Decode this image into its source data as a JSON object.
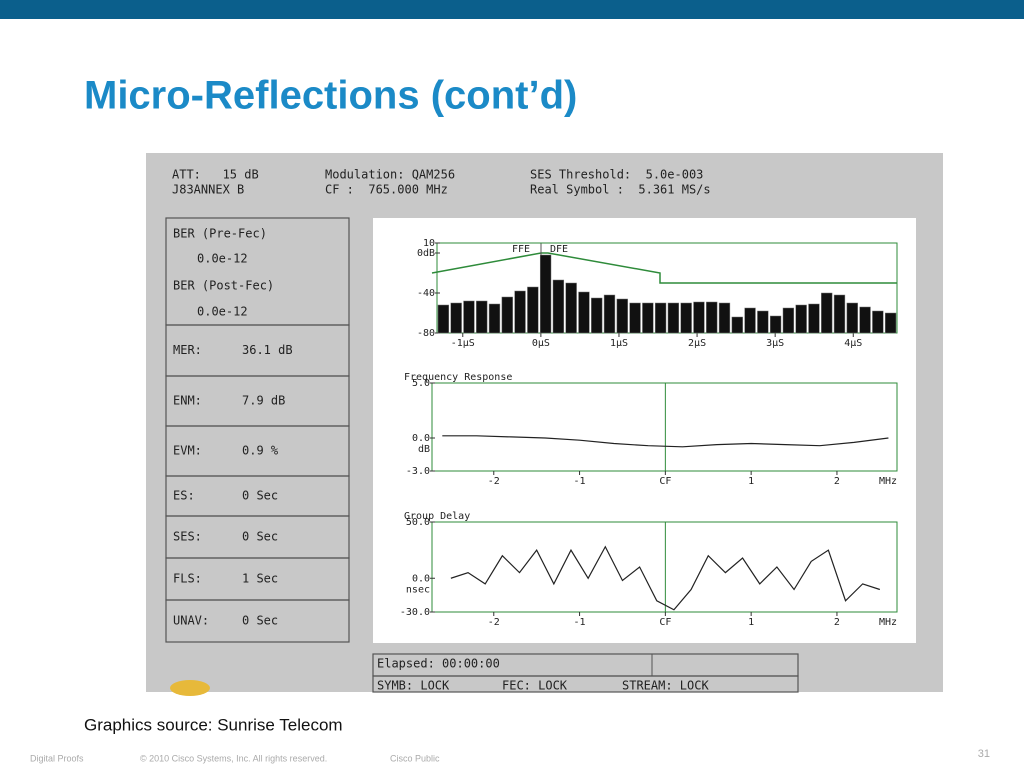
{
  "header": {
    "title": "Micro-Reflections (cont’d)"
  },
  "screen": {
    "info": [
      "ATT:   15 dB",
      "J83ANNEX B",
      "Modulation: QAM256",
      "CF :  765.000 MHz",
      "SES Threshold:  5.0e-003",
      "Real Symbol :  5.361 MS/s"
    ],
    "ber": [
      "BER (Pre-Fec)",
      "0.0e-12",
      "BER (Post-Fec)",
      "0.0e-12"
    ],
    "stats": [
      {
        "label": "MER:",
        "value": "36.1 dB"
      },
      {
        "label": "ENM:",
        "value": "7.9 dB"
      },
      {
        "label": "EVM:",
        "value": "0.9 %"
      },
      {
        "label": "ES:",
        "value": "0 Sec"
      },
      {
        "label": "SES:",
        "value": "0 Sec"
      },
      {
        "label": "FLS:",
        "value": "1 Sec"
      },
      {
        "label": "UNAV:",
        "value": "0 Sec"
      }
    ],
    "equalizer": {
      "legend": [
        "FFE",
        "DFE"
      ],
      "ylim": [
        -80,
        10
      ],
      "yticks": [
        10,
        {
          "value": 0,
          "label": "0dB"
        },
        -40,
        -80
      ],
      "xlim": [
        -1.33,
        4.56
      ],
      "xticks": [
        {
          "value": -1,
          "label": "-1µS"
        },
        {
          "value": 0,
          "label": "0µS"
        },
        {
          "value": 1,
          "label": "1µS"
        },
        {
          "value": 2,
          "label": "2µS"
        },
        {
          "value": 3,
          "label": "3µS"
        },
        {
          "value": 4,
          "label": "4µS"
        }
      ],
      "values": [
        -52,
        -50,
        -48,
        -48,
        -51,
        -44,
        -38,
        -34,
        -2,
        -27,
        -30,
        -39,
        -45,
        -42,
        -46,
        -50,
        -50,
        -50,
        -50,
        -50,
        -49,
        -49,
        -50,
        -64,
        -55,
        -58,
        -63,
        -55,
        -52,
        -51,
        -40,
        -42,
        -50,
        -54,
        -58,
        -60
      ]
    },
    "frequency_response": {
      "title": "Frequency Response",
      "y_unit": "dB",
      "x_unit": "MHz",
      "ylim": [
        -3,
        5
      ],
      "yticks": [
        {
          "value": 5,
          "label": "5.0"
        },
        {
          "value": 0,
          "label": "0.0"
        },
        {
          "value": -3,
          "label": "-3.0"
        }
      ],
      "xlim": [
        -2.72,
        2.7
      ],
      "xticks": [
        -2,
        -1,
        {
          "value": 0,
          "label": "CF"
        },
        1,
        2
      ],
      "x": [
        -2.6,
        -2.2,
        -1.8,
        -1.4,
        -1.0,
        -0.6,
        -0.2,
        0.2,
        0.6,
        1.0,
        1.4,
        1.8,
        2.2,
        2.6
      ],
      "values": [
        0.2,
        0.2,
        0.1,
        0.0,
        -0.2,
        -0.5,
        -0.7,
        -0.8,
        -0.6,
        -0.5,
        -0.6,
        -0.7,
        -0.4,
        0.0
      ]
    },
    "group_delay": {
      "title": "Group Delay",
      "y_unit": "nsec",
      "x_unit": "MHz",
      "ylim": [
        -30,
        50
      ],
      "yticks": [
        {
          "value": 50,
          "label": "50.0"
        },
        {
          "value": 0,
          "label": "0.0"
        },
        {
          "value": -30,
          "label": "-30.0"
        }
      ],
      "xlim": [
        -2.72,
        2.7
      ],
      "xticks": [
        -2,
        -1,
        {
          "value": 0,
          "label": "CF"
        },
        1,
        2
      ],
      "x": [
        -2.5,
        -2.3,
        -2.1,
        -1.9,
        -1.7,
        -1.5,
        -1.3,
        -1.1,
        -0.9,
        -0.7,
        -0.5,
        -0.3,
        -0.1,
        0.1,
        0.3,
        0.5,
        0.7,
        0.9,
        1.1,
        1.3,
        1.5,
        1.7,
        1.9,
        2.1,
        2.3,
        2.5
      ],
      "values": [
        0,
        5,
        -5,
        20,
        5,
        25,
        -5,
        25,
        0,
        28,
        -2,
        10,
        -20,
        -28,
        -10,
        20,
        5,
        18,
        -5,
        10,
        -10,
        15,
        25,
        -20,
        -5,
        -10
      ]
    },
    "status": [
      "Elapsed: 00:00:00",
      "SYMB: LOCK",
      "FEC: LOCK",
      "STREAM: LOCK"
    ]
  },
  "caption": "Graphics source: Sunrise Telecom",
  "footer": {
    "left": "Digital Proofs",
    "copyright": "© 2010 Cisco Systems, Inc. All rights reserved.",
    "classification": "Cisco Public",
    "page": "31"
  }
}
